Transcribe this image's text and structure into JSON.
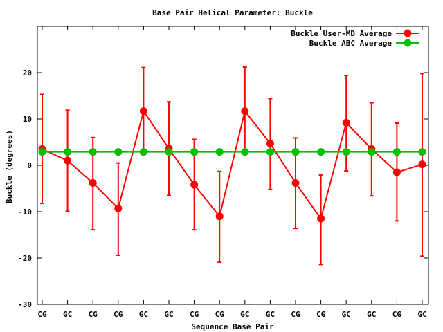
{
  "chart_data": {
    "type": "line",
    "title": "Base Pair Helical Parameter: Buckle",
    "xlabel": "Sequence Base Pair",
    "ylabel": "Buckle (degrees)",
    "ylim": [
      -30,
      30
    ],
    "yticks": [
      -30,
      -20,
      -10,
      0,
      10,
      20
    ],
    "categories": [
      "CG",
      "GC",
      "CG",
      "CG",
      "GC",
      "GC",
      "CG",
      "CG",
      "GC",
      "GC",
      "CG",
      "CG",
      "GC",
      "GC",
      "CG",
      "GC"
    ],
    "legend_position": "top-right",
    "grid": false,
    "series": [
      {
        "name": "Buckle User-MD Average",
        "color": "#ff0000",
        "values": [
          3.5,
          1.0,
          -3.8,
          -9.3,
          11.7,
          3.6,
          -4.2,
          -11.0,
          11.7,
          4.7,
          -3.8,
          -11.5,
          9.2,
          3.5,
          -1.5,
          0.2
        ],
        "error_low": [
          -8.2,
          -9.9,
          -13.9,
          -19.4,
          2.3,
          -6.5,
          -13.9,
          -20.9,
          2.5,
          -5.2,
          -13.6,
          -21.4,
          -1.2,
          -6.6,
          -12.0,
          -19.6
        ],
        "error_high": [
          15.3,
          11.9,
          6.0,
          0.5,
          21.1,
          13.7,
          5.6,
          -1.3,
          21.2,
          14.4,
          5.9,
          -2.1,
          19.4,
          13.5,
          9.1,
          19.8
        ]
      },
      {
        "name": "Buckle ABC Average",
        "color": "#00c000",
        "values": [
          2.9,
          2.9,
          2.9,
          2.9,
          2.9,
          2.9,
          2.9,
          2.9,
          2.9,
          2.9,
          2.9,
          2.9,
          2.9,
          2.9,
          2.9,
          2.9
        ]
      }
    ]
  }
}
